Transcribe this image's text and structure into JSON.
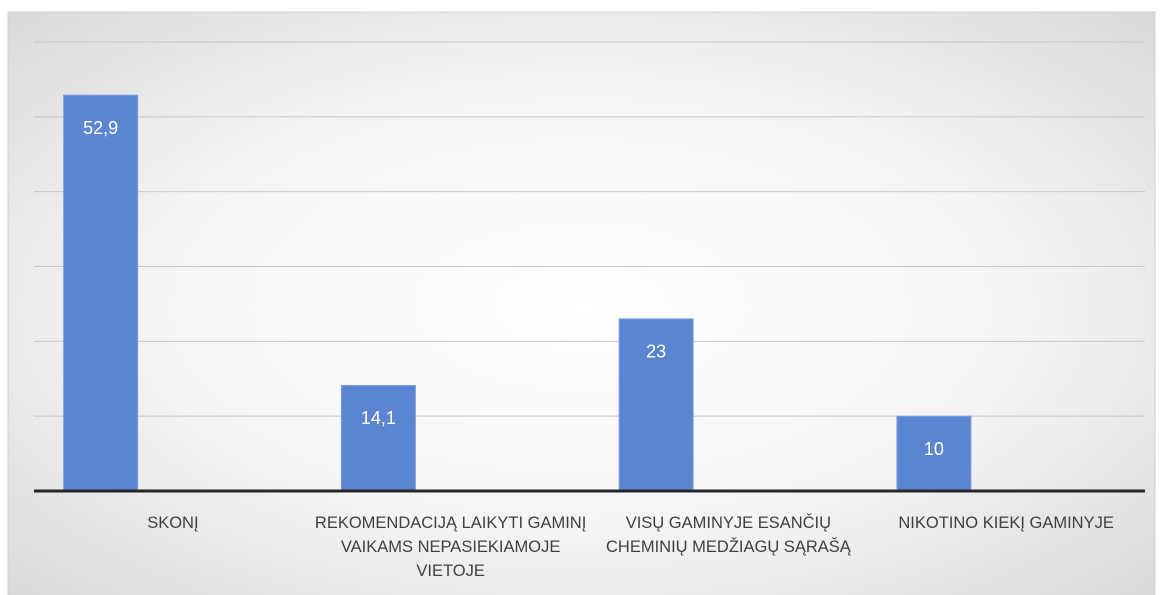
{
  "chart_data": {
    "type": "bar",
    "categories": [
      "SKONĮ",
      "REKOMENDACIJĄ LAIKYTI GAMINĮ VAIKAMS NEPASIEKIAMOJE VIETOJE",
      "VISŲ GAMINYJE ESANČIŲ CHEMINIŲ MEDŽIAGŲ SĄRAŠĄ",
      "NIKOTINO KIEKĮ GAMINYJE"
    ],
    "values": [
      52.9,
      14.1,
      23,
      10
    ],
    "value_labels": [
      "52,9",
      "14,1",
      "23",
      "10"
    ],
    "color": "#5b85d0",
    "ylim": [
      0,
      60
    ],
    "yticks": [
      0,
      10,
      20,
      30,
      40,
      50,
      60
    ],
    "grid": true
  }
}
